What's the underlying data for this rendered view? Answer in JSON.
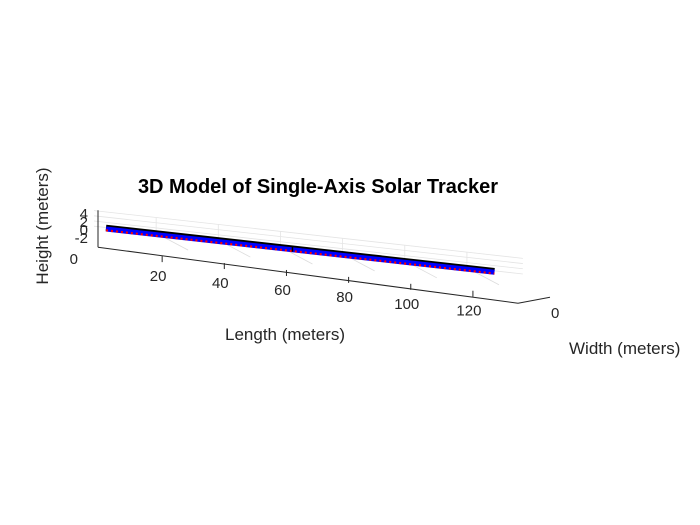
{
  "chart_data": {
    "type": "line",
    "title": "3D Model of Single-Axis Solar Tracker",
    "xlabel": "Length (meters)",
    "ylabel": "Width (meters)",
    "zlabel": "Height (meters)",
    "x_ticks": [
      "20",
      "40",
      "60",
      "80",
      "100",
      "120"
    ],
    "y_ticks": [
      "0"
    ],
    "z_ticks": [
      "4",
      "2",
      "0",
      "-2"
    ],
    "z_tick_left": "0",
    "xlim": [
      0,
      130
    ],
    "zlim": [
      -2,
      4
    ],
    "grid": true,
    "series": [
      {
        "color": "#000000",
        "style": "solid-thick",
        "x": [
          0,
          125
        ],
        "z": [
          0.5,
          0.5
        ]
      },
      {
        "color": "#0000ff",
        "style": "solid-thick",
        "x": [
          0,
          125
        ],
        "z": [
          0,
          0
        ]
      },
      {
        "color": "#ff0000",
        "style": "dotted",
        "x": [
          0,
          125
        ],
        "z": [
          -0.5,
          -0.5
        ]
      }
    ]
  }
}
